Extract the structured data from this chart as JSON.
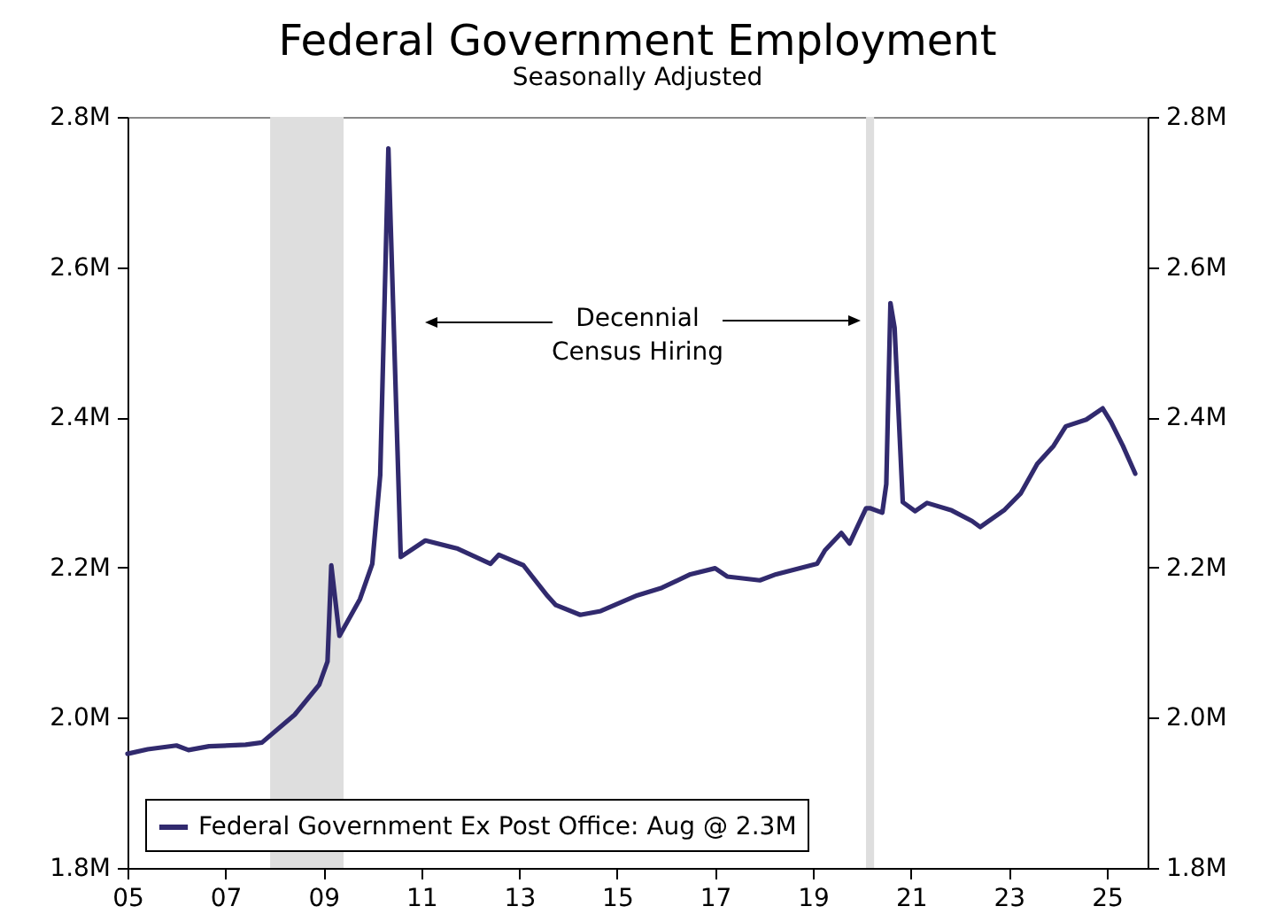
{
  "chart_data": {
    "type": "line",
    "title": "Federal Government Employment",
    "subtitle": "Seasonally Adjusted",
    "x": [
      "2005-01",
      "2005-06",
      "2006-01",
      "2006-04",
      "2006-09",
      "2007-06",
      "2007-10",
      "2008-06",
      "2008-12",
      "2009-02",
      "2009-03",
      "2009-05",
      "2009-10",
      "2010-01",
      "2010-03",
      "2010-05",
      "2010-08",
      "2011-02",
      "2011-10",
      "2012-06",
      "2012-08",
      "2013-02",
      "2013-08",
      "2013-10",
      "2014-04",
      "2014-09",
      "2015-06",
      "2015-12",
      "2016-07",
      "2017-01",
      "2017-04",
      "2017-12",
      "2018-04",
      "2019-02",
      "2019-04",
      "2019-08",
      "2019-10",
      "2020-02",
      "2020-03",
      "2020-06",
      "2020-07",
      "2020-08",
      "2020-09",
      "2020-11",
      "2021-02",
      "2021-05",
      "2021-11",
      "2022-04",
      "2022-06",
      "2022-12",
      "2023-04",
      "2023-08",
      "2023-12",
      "2024-03",
      "2024-08",
      "2024-12",
      "2025-02",
      "2025-05",
      "2025-08"
    ],
    "series": [
      {
        "name": "Federal Government Ex Post Office: Aug @ 2.3M",
        "color": "#312a6e",
        "values": [
          1.952,
          1.958,
          1.963,
          1.957,
          1.962,
          1.964,
          1.967,
          2.004,
          2.044,
          2.075,
          2.203,
          2.109,
          2.158,
          2.205,
          2.323,
          2.758,
          2.214,
          2.236,
          2.225,
          2.205,
          2.217,
          2.203,
          2.162,
          2.15,
          2.137,
          2.142,
          2.163,
          2.173,
          2.191,
          2.199,
          2.188,
          2.183,
          2.191,
          2.205,
          2.223,
          2.246,
          2.232,
          2.279,
          2.279,
          2.273,
          2.311,
          2.552,
          2.519,
          2.287,
          2.275,
          2.286,
          2.276,
          2.262,
          2.254,
          2.277,
          2.299,
          2.338,
          2.362,
          2.388,
          2.397,
          2.412,
          2.394,
          2.362,
          2.325
        ]
      }
    ],
    "xlim": [
      "2005-01",
      "2025-11"
    ],
    "xticks": [
      {
        "value": "2005",
        "label": "05"
      },
      {
        "value": "2007",
        "label": "07"
      },
      {
        "value": "2009",
        "label": "09"
      },
      {
        "value": "2011",
        "label": "11"
      },
      {
        "value": "2013",
        "label": "13"
      },
      {
        "value": "2015",
        "label": "15"
      },
      {
        "value": "2017",
        "label": "17"
      },
      {
        "value": "2019",
        "label": "19"
      },
      {
        "value": "2021",
        "label": "21"
      },
      {
        "value": "2023",
        "label": "23"
      },
      {
        "value": "2025",
        "label": "25"
      }
    ],
    "ylim": [
      1.8,
      2.8
    ],
    "yticks": [
      {
        "value": 1.8,
        "label": "1.8M"
      },
      {
        "value": 2.0,
        "label": "2.0M"
      },
      {
        "value": 2.2,
        "label": "2.2M"
      },
      {
        "value": 2.4,
        "label": "2.4M"
      },
      {
        "value": 2.6,
        "label": "2.6M"
      },
      {
        "value": 2.8,
        "label": "2.8M"
      }
    ],
    "y2lim": [
      1.8,
      2.8
    ],
    "y2ticks": [
      {
        "value": 1.8,
        "label": "1.8M"
      },
      {
        "value": 2.0,
        "label": "2.0M"
      },
      {
        "value": 2.2,
        "label": "2.2M"
      },
      {
        "value": 2.4,
        "label": "2.4M"
      },
      {
        "value": 2.6,
        "label": "2.6M"
      },
      {
        "value": 2.8,
        "label": "2.8M"
      }
    ],
    "bands": [
      {
        "axis": "x",
        "from": "2007-12",
        "to": "2009-06",
        "color": "#dedede"
      },
      {
        "axis": "x",
        "from": "2020-02",
        "to": "2020-04",
        "color": "#dedede"
      }
    ],
    "annotations": [
      "Decennial\nCensus Hiring"
    ],
    "legend": "bottom left"
  }
}
